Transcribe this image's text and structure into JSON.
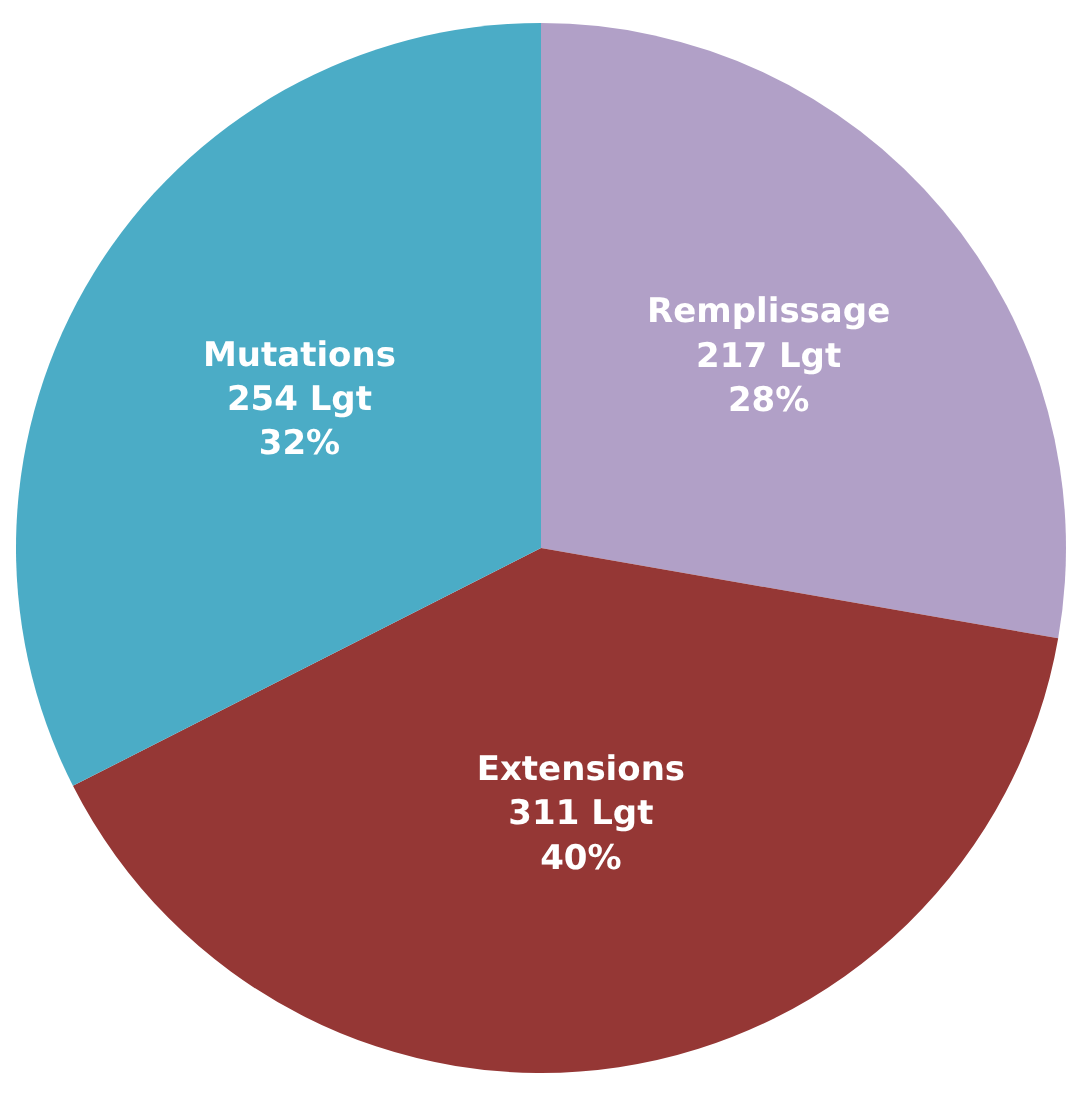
{
  "chart_data": {
    "type": "pie",
    "categories": [
      "Remplissage",
      "Extensions",
      "Mutations"
    ],
    "values": [
      217,
      311,
      254
    ],
    "colors": [
      "#b1a0c7",
      "#953735",
      "#4bacc6"
    ],
    "value_labels": [
      "217 Lgt\n28%",
      "311 Lgt\n40%",
      "254 Lgt\n32%"
    ],
    "legend": false
  }
}
